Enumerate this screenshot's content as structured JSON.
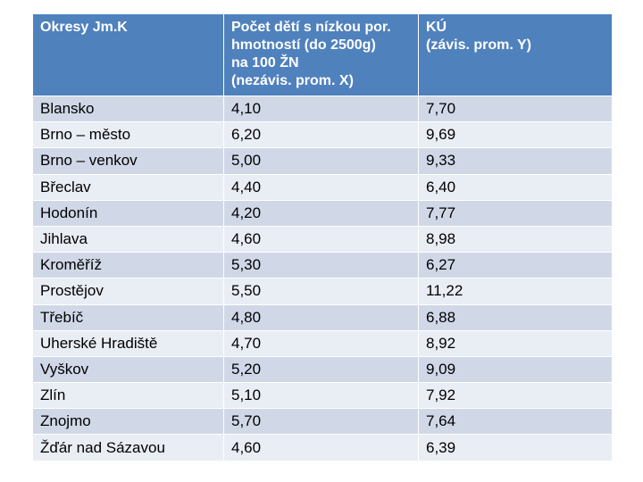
{
  "header": {
    "col1": "Okresy Jm.K",
    "col2_lines": [
      "Počet dětí s nízkou por.",
      "hmotností  (do 2500g)",
      "na 100 ŽN",
      "(nezávis. prom.  X)"
    ],
    "col3_lines": [
      "KÚ",
      "(závis. prom. Y)"
    ]
  },
  "rows": [
    {
      "okres": "Blansko",
      "x": "4,10",
      "y": "7,70"
    },
    {
      "okres": "Brno – město",
      "x": "6,20",
      "y": "9,69"
    },
    {
      "okres": "Brno – venkov",
      "x": "5,00",
      "y": "9,33"
    },
    {
      "okres": "Břeclav",
      "x": "4,40",
      "y": "6,40"
    },
    {
      "okres": "Hodonín",
      "x": "4,20",
      "y": "7,77"
    },
    {
      "okres": "Jihlava",
      "x": "4,60",
      "y": "8,98"
    },
    {
      "okres": "Kroměříž",
      "x": "5,30",
      "y": "6,27"
    },
    {
      "okres": "Prostějov",
      "x": "5,50",
      "y": "11,22"
    },
    {
      "okres": "Třebíč",
      "x": "4,80",
      "y": "6,88"
    },
    {
      "okres": "Uherské Hradiště",
      "x": "4,70",
      "y": "8,92"
    },
    {
      "okres": "Vyškov",
      "x": "5,20",
      "y": "9,09"
    },
    {
      "okres": "Zlín",
      "x": "5,10",
      "y": "7,92"
    },
    {
      "okres": "Znojmo",
      "x": "5,70",
      "y": "7,64"
    },
    {
      "okres": "Žďár nad Sázavou",
      "x": "4,60",
      "y": "6,39"
    }
  ],
  "colors": {
    "header_bg": "#4f81bd",
    "row_odd": "#d0d8e8",
    "row_even": "#e9edf4"
  }
}
